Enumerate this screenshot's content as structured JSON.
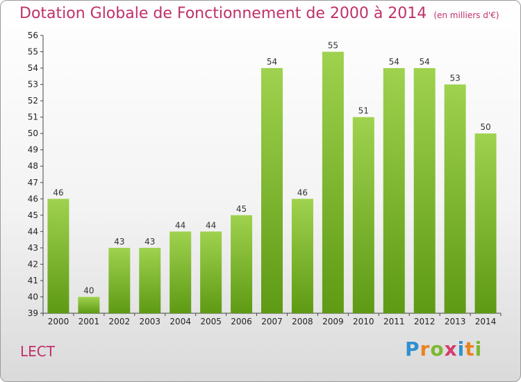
{
  "title": "Dotation Globale de Fonctionnement de 2000 à 2014",
  "subtitle": "(en milliers d'€)",
  "commune": "LECT",
  "brand": "Proxiti",
  "colors": {
    "bar_light": "#9fd24e",
    "bar_dark": "#5e9a14",
    "title": "#c0306a"
  },
  "chart_data": {
    "type": "bar",
    "title": "Dotation Globale de Fonctionnement de 2000 à 2014",
    "subtitle": "(en milliers d'€)",
    "categories": [
      "2000",
      "2001",
      "2002",
      "2003",
      "2004",
      "2005",
      "2006",
      "2007",
      "2008",
      "2009",
      "2010",
      "2011",
      "2012",
      "2013",
      "2014"
    ],
    "values": [
      46,
      40,
      43,
      43,
      44,
      44,
      45,
      54,
      46,
      55,
      51,
      54,
      54,
      53,
      50
    ],
    "ylim": [
      39,
      56
    ],
    "yticks": [
      39,
      40,
      41,
      42,
      43,
      44,
      45,
      46,
      47,
      48,
      49,
      50,
      51,
      52,
      53,
      54,
      55,
      56
    ],
    "grid": false,
    "legend": "none"
  }
}
